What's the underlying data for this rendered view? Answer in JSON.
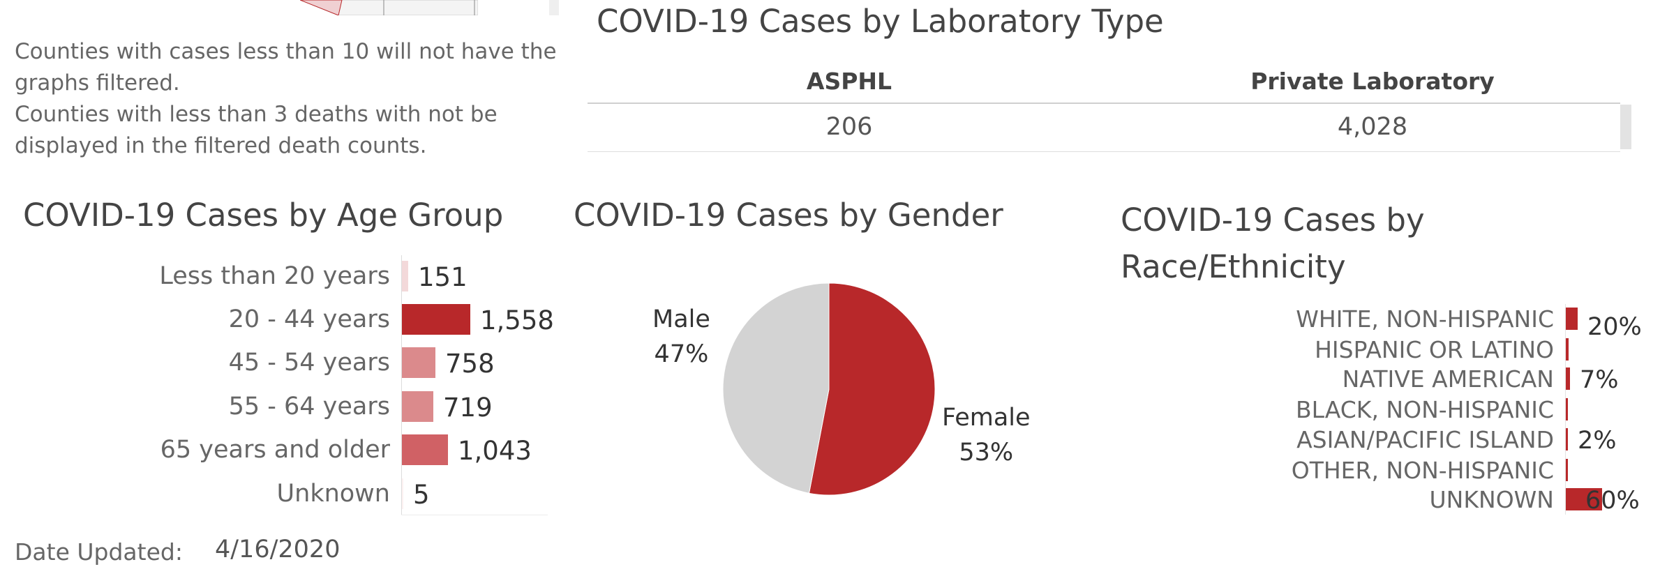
{
  "notes": {
    "line1": "Counties with cases less than 10 will not have the graphs filtered.",
    "line2": "Counties with less than 3 deaths with not be displayed in the filtered death counts."
  },
  "lab": {
    "title": "COVID-19 Cases by Laboratory Type",
    "columns": [
      "ASPHL",
      "Private Laboratory"
    ],
    "values": [
      "206",
      "4,028"
    ]
  },
  "date": {
    "label": "Date Updated:",
    "value": "4/16/2020"
  },
  "colors": {
    "dark_red": "#b8282a",
    "mid_red": "#d06165",
    "light_red": "#db8a8c",
    "pale_red": "#f3d9da",
    "grey": "#d3d3d3"
  },
  "chart_data": [
    {
      "type": "bar",
      "orientation": "horizontal",
      "title": "COVID-19 Cases by Age Group",
      "categories": [
        "Less than 20 years",
        "20 - 44 years",
        "45 - 54 years",
        "55 - 64 years",
        "65 years and older",
        "Unknown"
      ],
      "values": [
        151,
        1558,
        758,
        719,
        1043,
        5
      ],
      "value_labels": [
        "151",
        "1,558",
        "758",
        "719",
        "1,043",
        "5"
      ],
      "colors": [
        "#f3d9da",
        "#b8282a",
        "#db8a8c",
        "#db8a8c",
        "#d06165",
        "#fdf2f2"
      ]
    },
    {
      "type": "pie",
      "title": "COVID-19 Cases by Gender",
      "slices": [
        {
          "label": "Female",
          "value": 53,
          "value_label": "53%",
          "color": "#b8282a"
        },
        {
          "label": "Male",
          "value": 47,
          "value_label": "47%",
          "color": "#d3d3d3"
        }
      ]
    },
    {
      "type": "bar",
      "orientation": "horizontal",
      "title": "COVID-19 Cases by Race/Ethnicity",
      "categories": [
        "WHITE, NON-HISPANIC",
        "HISPANIC OR LATINO",
        "NATIVE AMERICAN",
        "BLACK, NON-HISPANIC",
        "ASIAN/PACIFIC ISLAND",
        "OTHER, NON-HISPANIC",
        "UNKNOWN"
      ],
      "values": [
        20,
        5,
        7,
        1,
        2,
        1,
        60
      ],
      "value_labels": [
        "20%",
        "",
        "7%",
        "",
        "2%",
        "",
        "60%"
      ]
    }
  ]
}
